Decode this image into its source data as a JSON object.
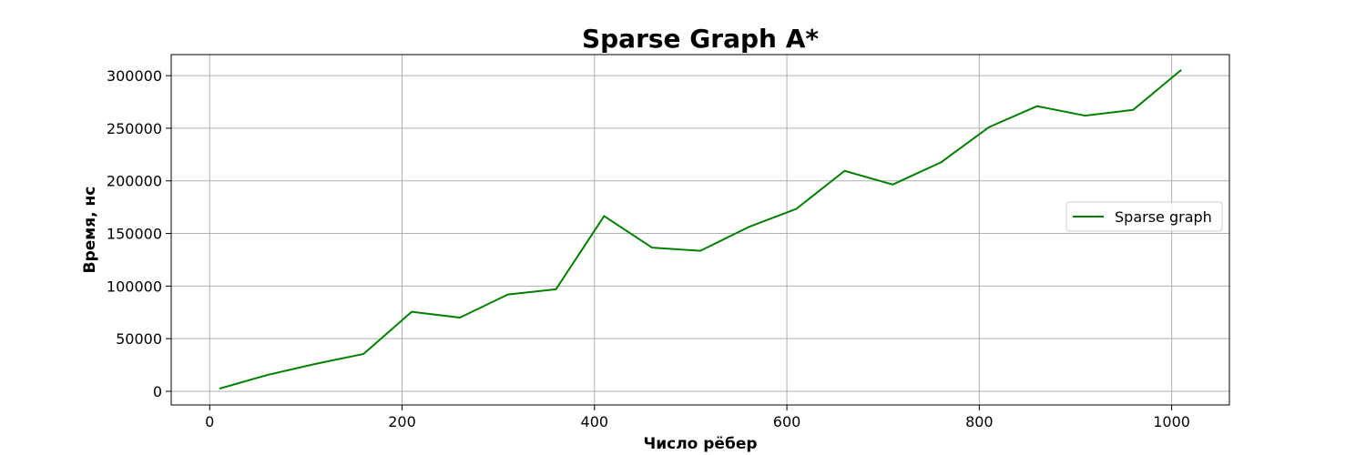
{
  "chart_data": {
    "type": "line",
    "title": "Sparse Graph A*",
    "xlabel": "Число рёбер",
    "ylabel": "Время, нс",
    "xlim": [
      -40,
      1060
    ],
    "ylim": [
      -13000,
      320000
    ],
    "xticks": [
      0,
      200,
      400,
      600,
      800,
      1000
    ],
    "yticks": [
      0,
      50000,
      100000,
      150000,
      200000,
      250000,
      300000
    ],
    "grid": true,
    "legend_position": "center-right",
    "series": [
      {
        "name": "Sparse graph",
        "color": "#008000",
        "x": [
          10,
          60,
          110,
          160,
          210,
          260,
          310,
          360,
          410,
          460,
          510,
          560,
          610,
          660,
          710,
          760,
          810,
          860,
          910,
          960,
          1010
        ],
        "y": [
          2500,
          15500,
          26000,
          35500,
          75500,
          70000,
          92000,
          97000,
          166500,
          136500,
          133500,
          156000,
          173500,
          209500,
          196500,
          217500,
          251000,
          271000,
          262000,
          267500,
          305500
        ]
      }
    ]
  }
}
